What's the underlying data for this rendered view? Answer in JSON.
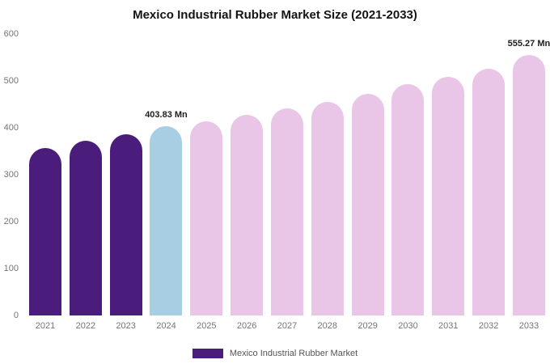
{
  "chart_data": {
    "type": "bar",
    "title": "Mexico Industrial Rubber Market Size (2021-2033)",
    "categories": [
      "2021",
      "2022",
      "2023",
      "2024",
      "2025",
      "2026",
      "2027",
      "2028",
      "2029",
      "2030",
      "2031",
      "2032",
      "2033"
    ],
    "values": [
      357,
      372,
      387,
      403.83,
      414,
      428,
      441,
      455,
      472,
      493,
      509,
      526,
      555.27
    ],
    "bar_colors": [
      "#4a1c7c",
      "#4a1c7c",
      "#4a1c7c",
      "#a7cee3",
      "#e9c6e8",
      "#e9c6e8",
      "#e9c6e8",
      "#e9c6e8",
      "#e9c6e8",
      "#e9c6e8",
      "#e9c6e8",
      "#e9c6e8",
      "#e9c6e8"
    ],
    "annotations": [
      {
        "index": 3,
        "text": "403.83 Mn"
      },
      {
        "index": 12,
        "text": "555.27 Mn"
      }
    ],
    "xlabel": "",
    "ylabel": "",
    "ylim": [
      0,
      600
    ],
    "yticks": [
      0,
      100,
      200,
      300,
      400,
      500,
      600
    ],
    "grid": false,
    "legend_position": "bottom"
  },
  "legend": {
    "label": "Mexico Industrial Rubber Market",
    "swatch_color": "#4a1c7c"
  },
  "colors": {
    "series_main": "#4a1c7c",
    "series_highlight": "#a7cee3",
    "series_forecast": "#e9c6e8",
    "axis_text": "#757575",
    "title_text": "#141414",
    "background": "#ffffff"
  }
}
